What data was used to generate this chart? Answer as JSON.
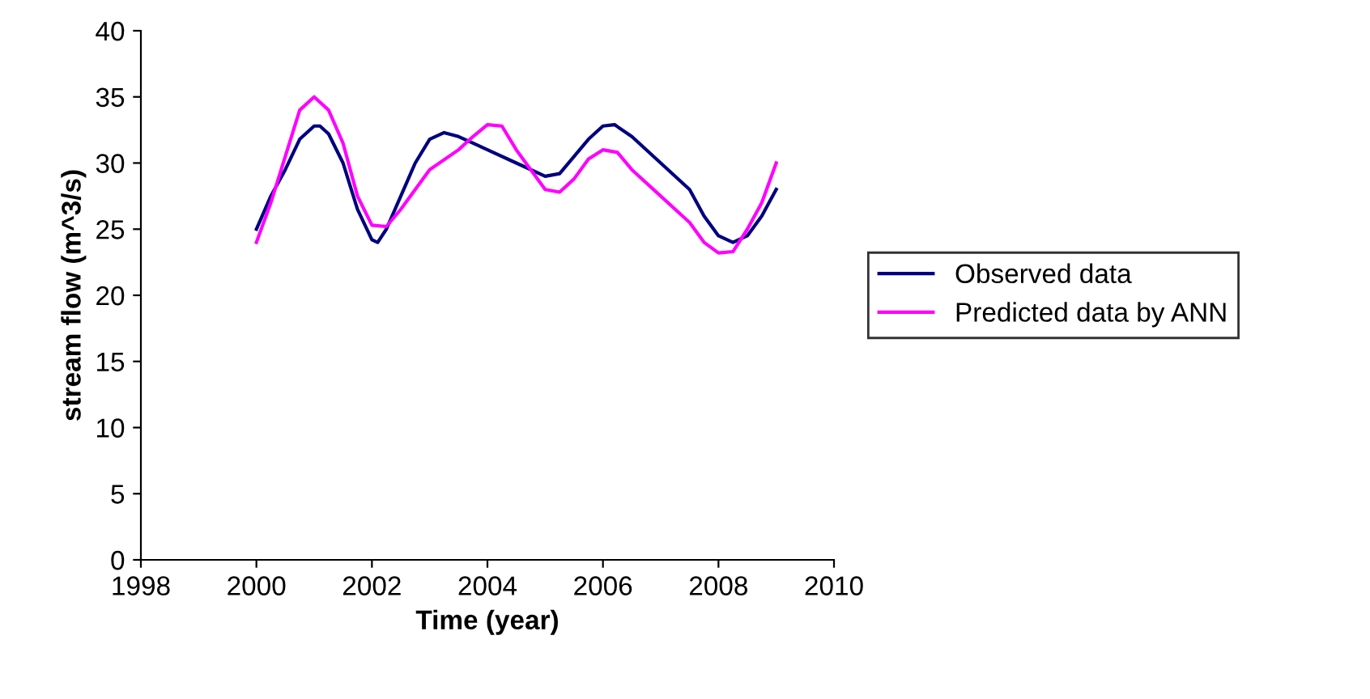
{
  "chart_data": {
    "type": "line",
    "xlabel": "Time (year)",
    "ylabel": "stream flow (m^3/s)",
    "xlim": [
      1998,
      2010
    ],
    "xticks": [
      1998,
      2000,
      2002,
      2004,
      2006,
      2008,
      2010
    ],
    "ylim": [
      0,
      40
    ],
    "yticks": [
      0,
      5,
      10,
      15,
      20,
      25,
      30,
      35,
      40
    ],
    "grid": false,
    "legend": "right",
    "marker": "none",
    "line_style": "solid",
    "series": [
      {
        "name": "Observed data",
        "color": "#000080",
        "x": [
          2000,
          2000.25,
          2000.5,
          2000.75,
          2001,
          2001.1,
          2001.25,
          2001.5,
          2001.75,
          2002,
          2002.1,
          2002.25,
          2002.5,
          2002.75,
          2003,
          2003.25,
          2003.5,
          2003.75,
          2004,
          2004.5,
          2005,
          2005.25,
          2005.5,
          2005.75,
          2006,
          2006.2,
          2006.5,
          2007,
          2007.5,
          2007.75,
          2008,
          2008.25,
          2008.5,
          2008.75,
          2009
        ],
        "values": [
          25,
          27.5,
          29.5,
          31.8,
          32.8,
          32.8,
          32.2,
          30,
          26.5,
          24.2,
          24,
          25,
          27.5,
          30,
          31.8,
          32.3,
          32,
          31.5,
          31,
          30,
          29,
          29.2,
          30.5,
          31.8,
          32.8,
          32.9,
          32,
          30,
          28,
          26,
          24.5,
          24,
          24.5,
          26,
          28
        ]
      },
      {
        "name": "Predicted data by ANN",
        "color": "#ff00ff",
        "x": [
          2000,
          2000.25,
          2000.5,
          2000.75,
          2001,
          2001.25,
          2001.5,
          2001.75,
          2002,
          2002.25,
          2002.5,
          2002.75,
          2003,
          2003.5,
          2003.75,
          2004,
          2004.25,
          2004.5,
          2004.75,
          2005,
          2005.25,
          2005.5,
          2005.75,
          2006,
          2006.25,
          2006.5,
          2007,
          2007.5,
          2007.75,
          2008,
          2008.25,
          2008.5,
          2008.75,
          2009
        ],
        "values": [
          24,
          27,
          30.5,
          34,
          35,
          34,
          31.5,
          27.5,
          25.3,
          25.2,
          26.5,
          28,
          29.5,
          31,
          32,
          32.9,
          32.8,
          31,
          29.5,
          28,
          27.8,
          28.8,
          30.3,
          31,
          30.8,
          29.5,
          27.5,
          25.5,
          24,
          23.2,
          23.3,
          25,
          27,
          30
        ]
      }
    ]
  }
}
